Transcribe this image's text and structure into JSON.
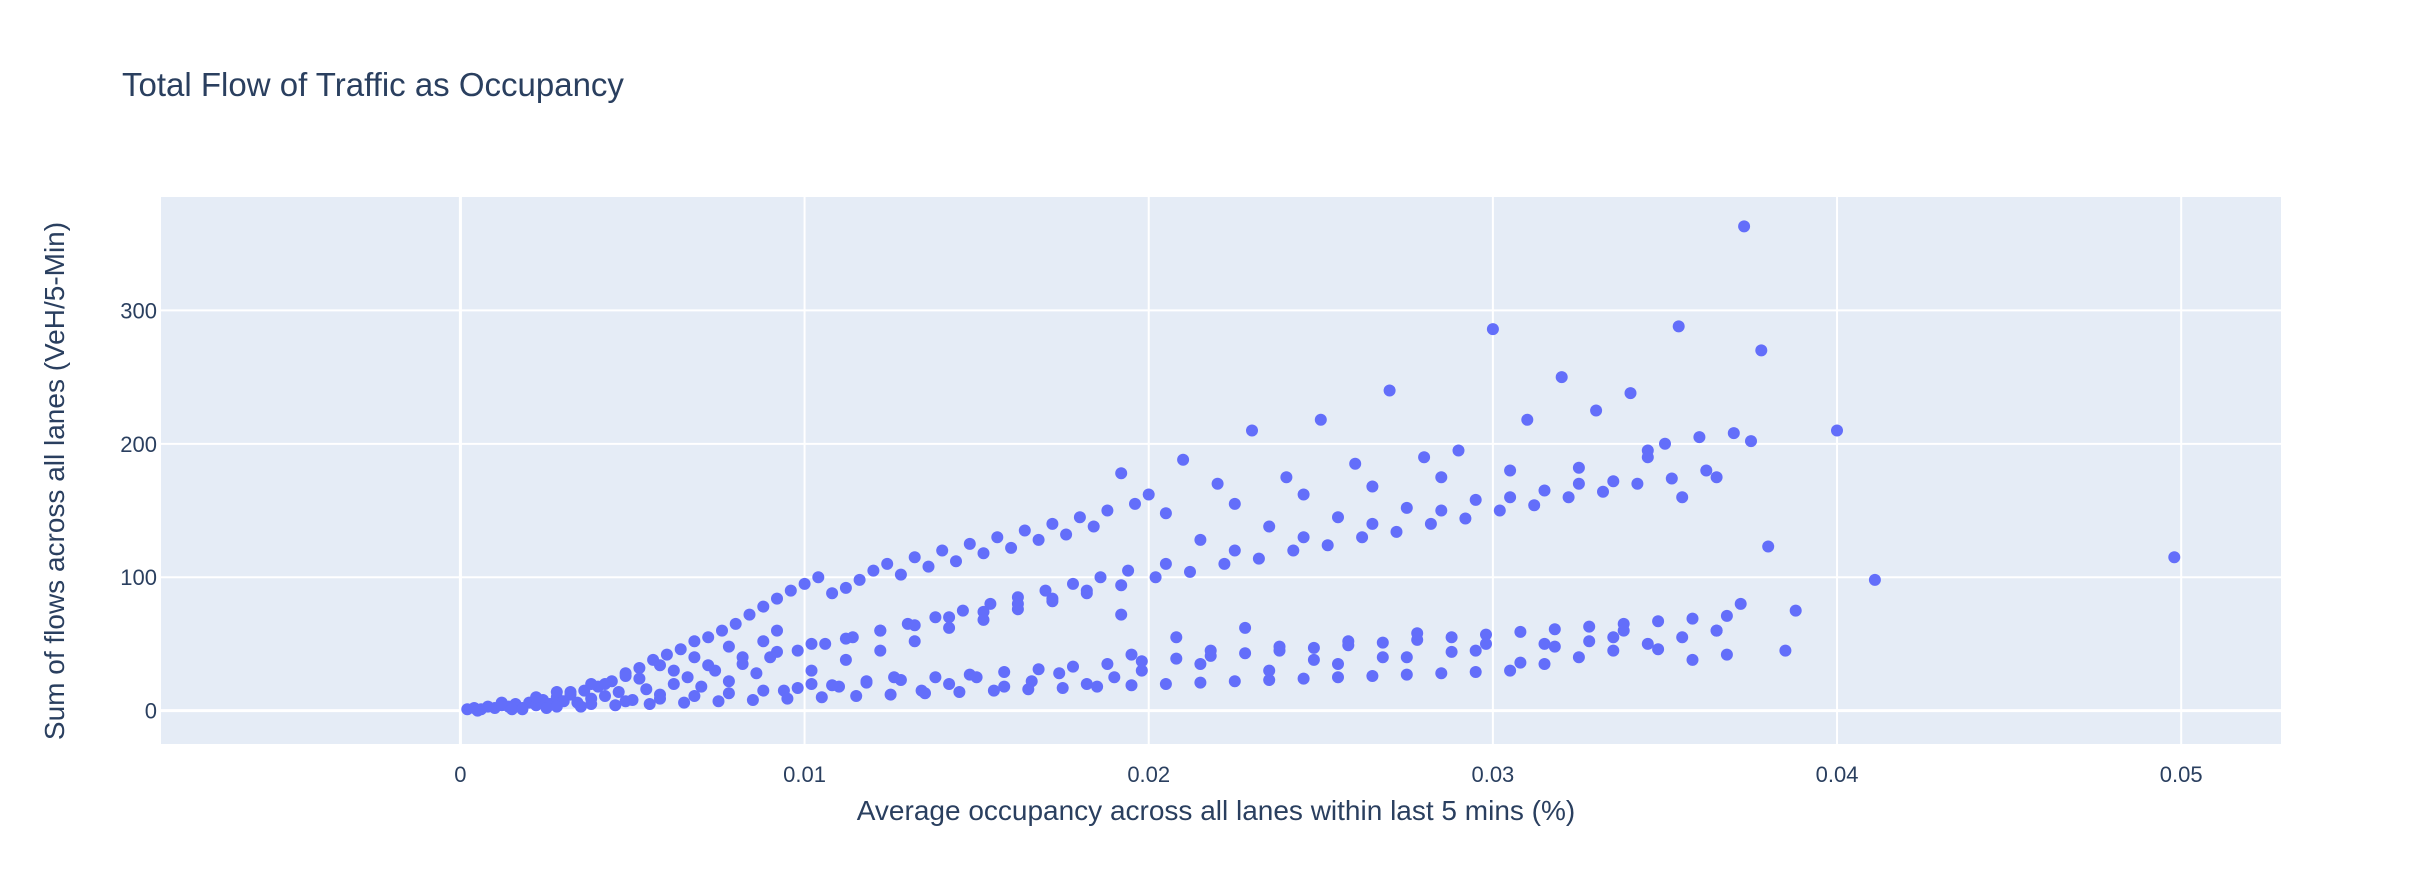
{
  "chart_data": {
    "type": "scatter",
    "title": "Total Flow of Traffic as Occupancy",
    "xlabel": "Average occupancy across all lanes within last 5 mins (%)",
    "ylabel": "Sum of flows across all lanes (VeH/5-Min)",
    "xlim": [
      -0.0087,
      0.0529
    ],
    "ylim": [
      -25,
      385
    ],
    "x_ticks": [
      0,
      0.01,
      0.02,
      0.03,
      0.04,
      0.05
    ],
    "x_tick_labels": [
      "0",
      "0.01",
      "0.02",
      "0.03",
      "0.04",
      "0.05"
    ],
    "y_ticks": [
      0,
      100,
      200,
      300
    ],
    "y_tick_labels": [
      "0",
      "100",
      "200",
      "300"
    ],
    "grid": true,
    "legend": "none",
    "colors": {
      "marker": "#636efa",
      "plot_bg": "#e5ecf6",
      "grid": "#ffffff",
      "text": "#2a3f5f"
    },
    "series": [
      {
        "points": [
          [
            0.0002,
            1
          ],
          [
            0.0004,
            2
          ],
          [
            0.0006,
            1
          ],
          [
            0.0008,
            3
          ],
          [
            0.001,
            2
          ],
          [
            0.0012,
            4
          ],
          [
            0.0014,
            3
          ],
          [
            0.0016,
            5
          ],
          [
            0.0018,
            2
          ],
          [
            0.002,
            6
          ],
          [
            0.0022,
            4
          ],
          [
            0.0024,
            8
          ],
          [
            0.0026,
            5
          ],
          [
            0.0028,
            10
          ],
          [
            0.003,
            7
          ],
          [
            0.0032,
            12
          ],
          [
            0.0034,
            6
          ],
          [
            0.0036,
            15
          ],
          [
            0.0038,
            9
          ],
          [
            0.004,
            18
          ],
          [
            0.0042,
            11
          ],
          [
            0.0044,
            22
          ],
          [
            0.0046,
            14
          ],
          [
            0.0048,
            28
          ],
          [
            0.005,
            8
          ],
          [
            0.0052,
            32
          ],
          [
            0.0054,
            16
          ],
          [
            0.0056,
            38
          ],
          [
            0.0058,
            12
          ],
          [
            0.006,
            42
          ],
          [
            0.0062,
            20
          ],
          [
            0.0064,
            46
          ],
          [
            0.0066,
            25
          ],
          [
            0.0068,
            52
          ],
          [
            0.007,
            18
          ],
          [
            0.0072,
            55
          ],
          [
            0.0074,
            30
          ],
          [
            0.0076,
            60
          ],
          [
            0.0078,
            22
          ],
          [
            0.008,
            65
          ],
          [
            0.0082,
            35
          ],
          [
            0.0084,
            72
          ],
          [
            0.0086,
            28
          ],
          [
            0.0088,
            78
          ],
          [
            0.009,
            40
          ],
          [
            0.0092,
            84
          ],
          [
            0.0094,
            15
          ],
          [
            0.0096,
            90
          ],
          [
            0.0098,
            45
          ],
          [
            0.01,
            95
          ],
          [
            0.0102,
            20
          ],
          [
            0.0104,
            100
          ],
          [
            0.0106,
            50
          ],
          [
            0.0108,
            88
          ],
          [
            0.011,
            18
          ],
          [
            0.0112,
            92
          ],
          [
            0.0114,
            55
          ],
          [
            0.0116,
            98
          ],
          [
            0.0118,
            22
          ],
          [
            0.012,
            105
          ],
          [
            0.0122,
            60
          ],
          [
            0.0124,
            110
          ],
          [
            0.0126,
            25
          ],
          [
            0.0128,
            102
          ],
          [
            0.013,
            65
          ],
          [
            0.0132,
            115
          ],
          [
            0.0134,
            15
          ],
          [
            0.0136,
            108
          ],
          [
            0.0138,
            70
          ],
          [
            0.014,
            120
          ],
          [
            0.0142,
            20
          ],
          [
            0.0144,
            112
          ],
          [
            0.0146,
            75
          ],
          [
            0.0148,
            125
          ],
          [
            0.015,
            25
          ],
          [
            0.0152,
            118
          ],
          [
            0.0154,
            80
          ],
          [
            0.0156,
            130
          ],
          [
            0.0158,
            18
          ],
          [
            0.016,
            122
          ],
          [
            0.0162,
            85
          ],
          [
            0.0164,
            135
          ],
          [
            0.0166,
            22
          ],
          [
            0.0168,
            128
          ],
          [
            0.017,
            90
          ],
          [
            0.0172,
            140
          ],
          [
            0.0174,
            28
          ],
          [
            0.0176,
            132
          ],
          [
            0.0178,
            95
          ],
          [
            0.018,
            145
          ],
          [
            0.0182,
            20
          ],
          [
            0.0184,
            138
          ],
          [
            0.0186,
            100
          ],
          [
            0.0188,
            150
          ],
          [
            0.019,
            25
          ],
          [
            0.0192,
            178
          ],
          [
            0.0194,
            105
          ],
          [
            0.0196,
            155
          ],
          [
            0.0198,
            30
          ],
          [
            0.02,
            162
          ],
          [
            0.0205,
            110
          ],
          [
            0.021,
            188
          ],
          [
            0.0215,
            35
          ],
          [
            0.022,
            170
          ],
          [
            0.0225,
            120
          ],
          [
            0.023,
            210
          ],
          [
            0.0235,
            30
          ],
          [
            0.024,
            175
          ],
          [
            0.0245,
            130
          ],
          [
            0.025,
            218
          ],
          [
            0.0255,
            35
          ],
          [
            0.026,
            185
          ],
          [
            0.0265,
            140
          ],
          [
            0.027,
            240
          ],
          [
            0.0275,
            40
          ],
          [
            0.028,
            190
          ],
          [
            0.0285,
            150
          ],
          [
            0.029,
            195
          ],
          [
            0.0295,
            45
          ],
          [
            0.03,
            286
          ],
          [
            0.0305,
            160
          ],
          [
            0.031,
            218
          ],
          [
            0.0315,
            50
          ],
          [
            0.032,
            250
          ],
          [
            0.0325,
            170
          ],
          [
            0.033,
            225
          ],
          [
            0.0335,
            55
          ],
          [
            0.034,
            238
          ],
          [
            0.0345,
            195
          ],
          [
            0.035,
            200
          ],
          [
            0.0354,
            288
          ],
          [
            0.036,
            205
          ],
          [
            0.0365,
            60
          ],
          [
            0.037,
            208
          ],
          [
            0.0373,
            363
          ],
          [
            0.0375,
            202
          ],
          [
            0.0378,
            270
          ],
          [
            0.038,
            123
          ],
          [
            0.0385,
            45
          ],
          [
            0.0388,
            75
          ],
          [
            0.04,
            210
          ],
          [
            0.0411,
            98
          ],
          [
            0.0498,
            115
          ],
          [
            0.0005,
            0
          ],
          [
            0.0015,
            1
          ],
          [
            0.0025,
            2
          ],
          [
            0.0035,
            3
          ],
          [
            0.0045,
            4
          ],
          [
            0.0055,
            5
          ],
          [
            0.0065,
            6
          ],
          [
            0.0075,
            7
          ],
          [
            0.0085,
            8
          ],
          [
            0.0095,
            9
          ],
          [
            0.0105,
            10
          ],
          [
            0.0115,
            11
          ],
          [
            0.0125,
            12
          ],
          [
            0.0135,
            13
          ],
          [
            0.0145,
            14
          ],
          [
            0.0155,
            15
          ],
          [
            0.0165,
            16
          ],
          [
            0.0175,
            17
          ],
          [
            0.0185,
            18
          ],
          [
            0.0195,
            19
          ],
          [
            0.0205,
            20
          ],
          [
            0.0215,
            21
          ],
          [
            0.0225,
            22
          ],
          [
            0.0235,
            23
          ],
          [
            0.0245,
            24
          ],
          [
            0.0255,
            25
          ],
          [
            0.0265,
            26
          ],
          [
            0.0275,
            27
          ],
          [
            0.0285,
            28
          ],
          [
            0.0295,
            29
          ],
          [
            0.0305,
            30
          ],
          [
            0.0315,
            35
          ],
          [
            0.0325,
            40
          ],
          [
            0.0335,
            45
          ],
          [
            0.0345,
            50
          ],
          [
            0.0355,
            55
          ],
          [
            0.0365,
            60
          ],
          [
            0.0372,
            80
          ],
          [
            0.0012,
            6
          ],
          [
            0.0022,
            10
          ],
          [
            0.0032,
            14
          ],
          [
            0.0042,
            20
          ],
          [
            0.0052,
            24
          ],
          [
            0.0062,
            30
          ],
          [
            0.0072,
            34
          ],
          [
            0.0082,
            40
          ],
          [
            0.0092,
            44
          ],
          [
            0.0102,
            50
          ],
          [
            0.0112,
            54
          ],
          [
            0.0122,
            60
          ],
          [
            0.0132,
            64
          ],
          [
            0.0142,
            70
          ],
          [
            0.0152,
            74
          ],
          [
            0.0162,
            80
          ],
          [
            0.0172,
            84
          ],
          [
            0.0182,
            90
          ],
          [
            0.0192,
            94
          ],
          [
            0.0202,
            100
          ],
          [
            0.0212,
            104
          ],
          [
            0.0222,
            110
          ],
          [
            0.0232,
            114
          ],
          [
            0.0242,
            120
          ],
          [
            0.0252,
            124
          ],
          [
            0.0262,
            130
          ],
          [
            0.0272,
            134
          ],
          [
            0.0282,
            140
          ],
          [
            0.0292,
            144
          ],
          [
            0.0302,
            150
          ],
          [
            0.0312,
            154
          ],
          [
            0.0322,
            160
          ],
          [
            0.0332,
            164
          ],
          [
            0.0342,
            170
          ],
          [
            0.0352,
            174
          ],
          [
            0.0362,
            180
          ],
          [
            0.0018,
            1
          ],
          [
            0.0028,
            3
          ],
          [
            0.0038,
            5
          ],
          [
            0.0048,
            7
          ],
          [
            0.0058,
            9
          ],
          [
            0.0068,
            11
          ],
          [
            0.0078,
            13
          ],
          [
            0.0088,
            15
          ],
          [
            0.0098,
            17
          ],
          [
            0.0108,
            19
          ],
          [
            0.0118,
            21
          ],
          [
            0.0128,
            23
          ],
          [
            0.0138,
            25
          ],
          [
            0.0148,
            27
          ],
          [
            0.0158,
            29
          ],
          [
            0.0168,
            31
          ],
          [
            0.0178,
            33
          ],
          [
            0.0188,
            35
          ],
          [
            0.0198,
            37
          ],
          [
            0.0208,
            39
          ],
          [
            0.0218,
            41
          ],
          [
            0.0228,
            43
          ],
          [
            0.0238,
            45
          ],
          [
            0.0248,
            47
          ],
          [
            0.0258,
            49
          ],
          [
            0.0268,
            51
          ],
          [
            0.0278,
            53
          ],
          [
            0.0288,
            55
          ],
          [
            0.0298,
            57
          ],
          [
            0.0308,
            59
          ],
          [
            0.0318,
            61
          ],
          [
            0.0328,
            63
          ],
          [
            0.0338,
            65
          ],
          [
            0.0348,
            67
          ],
          [
            0.0358,
            69
          ],
          [
            0.0368,
            71
          ],
          [
            0.0195,
            42
          ],
          [
            0.0208,
            55
          ],
          [
            0.0218,
            45
          ],
          [
            0.0228,
            62
          ],
          [
            0.0238,
            48
          ],
          [
            0.0248,
            38
          ],
          [
            0.0258,
            52
          ],
          [
            0.0268,
            40
          ],
          [
            0.0278,
            58
          ],
          [
            0.0288,
            44
          ],
          [
            0.0298,
            50
          ],
          [
            0.0308,
            36
          ],
          [
            0.0318,
            48
          ],
          [
            0.0328,
            52
          ],
          [
            0.0338,
            60
          ],
          [
            0.0348,
            46
          ],
          [
            0.0358,
            38
          ],
          [
            0.0368,
            42
          ],
          [
            0.0205,
            148
          ],
          [
            0.0215,
            128
          ],
          [
            0.0225,
            155
          ],
          [
            0.0235,
            138
          ],
          [
            0.0245,
            162
          ],
          [
            0.0255,
            145
          ],
          [
            0.0265,
            168
          ],
          [
            0.0275,
            152
          ],
          [
            0.0285,
            175
          ],
          [
            0.0295,
            158
          ],
          [
            0.0305,
            180
          ],
          [
            0.0315,
            165
          ],
          [
            0.0325,
            182
          ],
          [
            0.0335,
            172
          ],
          [
            0.0345,
            190
          ],
          [
            0.0355,
            160
          ],
          [
            0.0365,
            175
          ],
          [
            0.0102,
            30
          ],
          [
            0.0112,
            38
          ],
          [
            0.0122,
            45
          ],
          [
            0.0132,
            52
          ],
          [
            0.0142,
            62
          ],
          [
            0.0152,
            68
          ],
          [
            0.0162,
            76
          ],
          [
            0.0172,
            82
          ],
          [
            0.0182,
            88
          ],
          [
            0.0192,
            72
          ],
          [
            0.0092,
            60
          ],
          [
            0.0088,
            52
          ],
          [
            0.0078,
            48
          ],
          [
            0.0068,
            40
          ],
          [
            0.0058,
            34
          ],
          [
            0.0048,
            26
          ],
          [
            0.0038,
            20
          ],
          [
            0.0028,
            14
          ]
        ]
      }
    ]
  }
}
